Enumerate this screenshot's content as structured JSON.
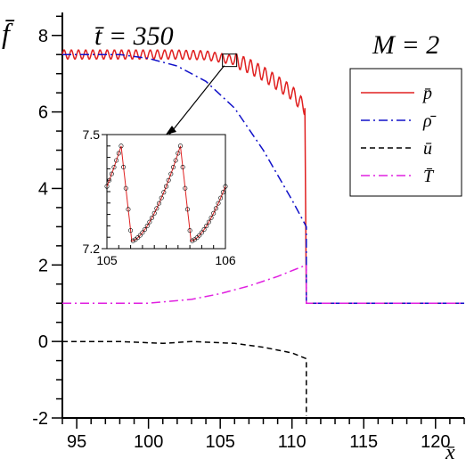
{
  "chart_data": {
    "type": "line",
    "annotations": {
      "time": "t̄ = 350",
      "mach": "M = 2",
      "ylabel": "f̄",
      "xlabel": "x̄"
    },
    "xlim": [
      94,
      122
    ],
    "ylim": [
      -2,
      8.6
    ],
    "x_ticks": [
      95,
      100,
      105,
      110,
      115,
      120
    ],
    "y_ticks": [
      -2,
      0,
      2,
      4,
      6,
      8
    ],
    "legend": {
      "placement": "top-right",
      "entries": [
        "p̄",
        "ρ̄",
        "ū",
        "T̄"
      ]
    },
    "colors": {
      "p": "#e02020",
      "rho": "#1010c8",
      "u": "#000000",
      "T": "#e020e0"
    },
    "series": [
      {
        "name": "p̄",
        "style": "solid",
        "description_points": [
          [
            94,
            7.5
          ],
          [
            102,
            7.5
          ],
          [
            104,
            7.48
          ],
          [
            106,
            7.35
          ],
          [
            107,
            7.2
          ],
          [
            108,
            7.0
          ],
          [
            109,
            6.75
          ],
          [
            110,
            6.5
          ],
          [
            110.9,
            6.1
          ],
          [
            111,
            1.0
          ],
          [
            122,
            1.0
          ]
        ],
        "oscillation_amplitude": 0.12
      },
      {
        "name": "ρ̄",
        "style": "dash-dot",
        "description_points": [
          [
            94,
            7.5
          ],
          [
            98,
            7.5
          ],
          [
            100,
            7.4
          ],
          [
            102,
            7.2
          ],
          [
            104,
            6.8
          ],
          [
            106,
            6.1
          ],
          [
            108,
            5.0
          ],
          [
            110,
            3.7
          ],
          [
            111,
            3.0
          ],
          [
            111,
            1.0
          ],
          [
            122,
            1.0
          ]
        ]
      },
      {
        "name": "ū",
        "style": "dashed",
        "description_points": [
          [
            94,
            0.0
          ],
          [
            98,
            0.0
          ],
          [
            101,
            -0.05
          ],
          [
            103,
            0.0
          ],
          [
            106,
            -0.05
          ],
          [
            108,
            -0.15
          ],
          [
            110,
            -0.3
          ],
          [
            111,
            -0.45
          ],
          [
            111,
            -1.95
          ]
        ]
      },
      {
        "name": "T̄",
        "style": "dash-dot",
        "description_points": [
          [
            94,
            1.0
          ],
          [
            100,
            1.0
          ],
          [
            103,
            1.1
          ],
          [
            105,
            1.25
          ],
          [
            107,
            1.45
          ],
          [
            109,
            1.7
          ],
          [
            111,
            2.0
          ],
          [
            111,
            1.0
          ],
          [
            122,
            1.0
          ]
        ]
      }
    ],
    "inset": {
      "xlim": [
        105,
        106
      ],
      "ylim": [
        7.2,
        7.5
      ],
      "x_ticks": [
        105,
        106
      ],
      "y_ticks": [
        7.2,
        7.5
      ],
      "series_name": "p̄",
      "zoom_window_x": [
        105,
        106
      ],
      "zoom_window_y": [
        7.2,
        7.5
      ]
    }
  }
}
